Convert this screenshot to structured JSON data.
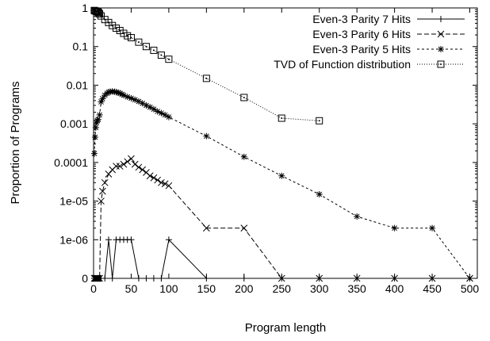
{
  "chart_data": {
    "type": "line",
    "title": "",
    "xlabel": "Program length",
    "ylabel": "Proportion of Programs",
    "xlim": [
      0,
      510
    ],
    "x_ticks": [
      {
        "value": 0,
        "label": "0"
      },
      {
        "value": 50,
        "label": "50"
      },
      {
        "value": 100,
        "label": "100"
      },
      {
        "value": 150,
        "label": "150"
      },
      {
        "value": 200,
        "label": "200"
      },
      {
        "value": 250,
        "label": "250"
      },
      {
        "value": 300,
        "label": "300"
      },
      {
        "value": 350,
        "label": "350"
      },
      {
        "value": 400,
        "label": "400"
      },
      {
        "value": 450,
        "label": "450"
      },
      {
        "value": 500,
        "label": "500"
      }
    ],
    "y_scale": "log-with-zero",
    "y_ticks": [
      {
        "value": 0,
        "label": "0"
      },
      {
        "value": 1e-06,
        "label": "1e-06"
      },
      {
        "value": 1e-05,
        "label": "1e-05"
      },
      {
        "value": 0.0001,
        "label": "0.0001"
      },
      {
        "value": 0.001,
        "label": "0.001"
      },
      {
        "value": 0.01,
        "label": "0.01"
      },
      {
        "value": 0.1,
        "label": "0.1"
      },
      {
        "value": 1,
        "label": "1"
      }
    ],
    "legend_position": "top-right",
    "series": [
      {
        "name": "Even-3 Parity 7 Hits",
        "marker": "plus",
        "line": "solid",
        "points": [
          [
            1,
            0
          ],
          [
            2,
            0
          ],
          [
            3,
            0
          ],
          [
            4,
            0
          ],
          [
            5,
            0
          ],
          [
            6,
            0
          ],
          [
            7,
            0
          ],
          [
            8,
            0
          ],
          [
            9,
            0
          ],
          [
            10,
            0
          ],
          [
            15,
            0
          ],
          [
            20,
            1e-06
          ],
          [
            25,
            0
          ],
          [
            30,
            1e-06
          ],
          [
            35,
            1e-06
          ],
          [
            40,
            1e-06
          ],
          [
            45,
            1e-06
          ],
          [
            50,
            1e-06
          ],
          [
            60,
            0
          ],
          [
            70,
            0
          ],
          [
            80,
            0
          ],
          [
            90,
            0
          ],
          [
            100,
            1e-06
          ],
          [
            150,
            0
          ],
          [
            200,
            0
          ],
          [
            250,
            0
          ],
          [
            300,
            0
          ],
          [
            350,
            0
          ],
          [
            400,
            0
          ],
          [
            450,
            0
          ],
          [
            500,
            0
          ]
        ]
      },
      {
        "name": "Even-3 Parity 6 Hits",
        "marker": "cross",
        "line": "dashed",
        "points": [
          [
            1,
            0
          ],
          [
            2,
            0
          ],
          [
            3,
            0
          ],
          [
            4,
            0
          ],
          [
            5,
            0
          ],
          [
            6,
            0
          ],
          [
            8,
            0
          ],
          [
            10,
            1e-05
          ],
          [
            12,
            1.8e-05
          ],
          [
            15,
            3e-05
          ],
          [
            20,
            5e-05
          ],
          [
            25,
            6.5e-05
          ],
          [
            30,
            8e-05
          ],
          [
            35,
            8e-05
          ],
          [
            40,
            9e-05
          ],
          [
            45,
            0.000105
          ],
          [
            50,
            0.000125
          ],
          [
            55,
            9e-05
          ],
          [
            60,
            7.5e-05
          ],
          [
            65,
            6.5e-05
          ],
          [
            70,
            5.5e-05
          ],
          [
            75,
            4.5e-05
          ],
          [
            80,
            4e-05
          ],
          [
            85,
            3.5e-05
          ],
          [
            90,
            3e-05
          ],
          [
            95,
            2.8e-05
          ],
          [
            100,
            2.5e-05
          ],
          [
            150,
            2e-06
          ],
          [
            200,
            2e-06
          ],
          [
            250,
            0
          ],
          [
            300,
            0
          ],
          [
            350,
            0
          ],
          [
            400,
            0
          ],
          [
            450,
            0
          ],
          [
            500,
            0
          ]
        ]
      },
      {
        "name": "Even-3 Parity 5 Hits",
        "marker": "star",
        "line": "dashed-fine",
        "points": [
          [
            1,
            0.00017
          ],
          [
            2,
            0.00045
          ],
          [
            3,
            0.0008
          ],
          [
            4,
            0.0011
          ],
          [
            5,
            0.0012
          ],
          [
            6,
            0.0013
          ],
          [
            8,
            0.0017
          ],
          [
            10,
            0.0037
          ],
          [
            12,
            0.0045
          ],
          [
            15,
            0.0055
          ],
          [
            18,
            0.0062
          ],
          [
            20,
            0.0066
          ],
          [
            22,
            0.0068
          ],
          [
            25,
            0.0069
          ],
          [
            28,
            0.0068
          ],
          [
            30,
            0.0066
          ],
          [
            33,
            0.0064
          ],
          [
            35,
            0.0062
          ],
          [
            38,
            0.0058
          ],
          [
            40,
            0.0055
          ],
          [
            45,
            0.005
          ],
          [
            50,
            0.0046
          ],
          [
            55,
            0.0042
          ],
          [
            60,
            0.0038
          ],
          [
            65,
            0.0034
          ],
          [
            70,
            0.003
          ],
          [
            75,
            0.0027
          ],
          [
            80,
            0.0024
          ],
          [
            85,
            0.0021
          ],
          [
            90,
            0.0019
          ],
          [
            95,
            0.0017
          ],
          [
            100,
            0.0015
          ],
          [
            150,
            0.00048
          ],
          [
            200,
            0.00014
          ],
          [
            250,
            4.5e-05
          ],
          [
            300,
            1.5e-05
          ],
          [
            350,
            4e-06
          ],
          [
            400,
            2e-06
          ],
          [
            450,
            2e-06
          ],
          [
            500,
            0
          ]
        ]
      },
      {
        "name": "TVD of Function distribution",
        "marker": "boxed-dot",
        "line": "dotted",
        "points": [
          [
            1,
            0.86
          ],
          [
            2,
            0.84
          ],
          [
            3,
            0.83
          ],
          [
            4,
            0.82
          ],
          [
            5,
            0.8
          ],
          [
            6,
            0.78
          ],
          [
            7,
            0.75
          ],
          [
            8,
            0.7
          ],
          [
            10,
            0.62
          ],
          [
            15,
            0.5
          ],
          [
            20,
            0.42
          ],
          [
            25,
            0.35
          ],
          [
            30,
            0.3
          ],
          [
            35,
            0.26
          ],
          [
            40,
            0.22
          ],
          [
            45,
            0.19
          ],
          [
            50,
            0.17
          ],
          [
            60,
            0.13
          ],
          [
            70,
            0.1
          ],
          [
            80,
            0.08
          ],
          [
            90,
            0.06
          ],
          [
            100,
            0.047
          ],
          [
            150,
            0.015
          ],
          [
            200,
            0.0048
          ],
          [
            250,
            0.0014
          ],
          [
            300,
            0.0012
          ]
        ]
      }
    ]
  }
}
